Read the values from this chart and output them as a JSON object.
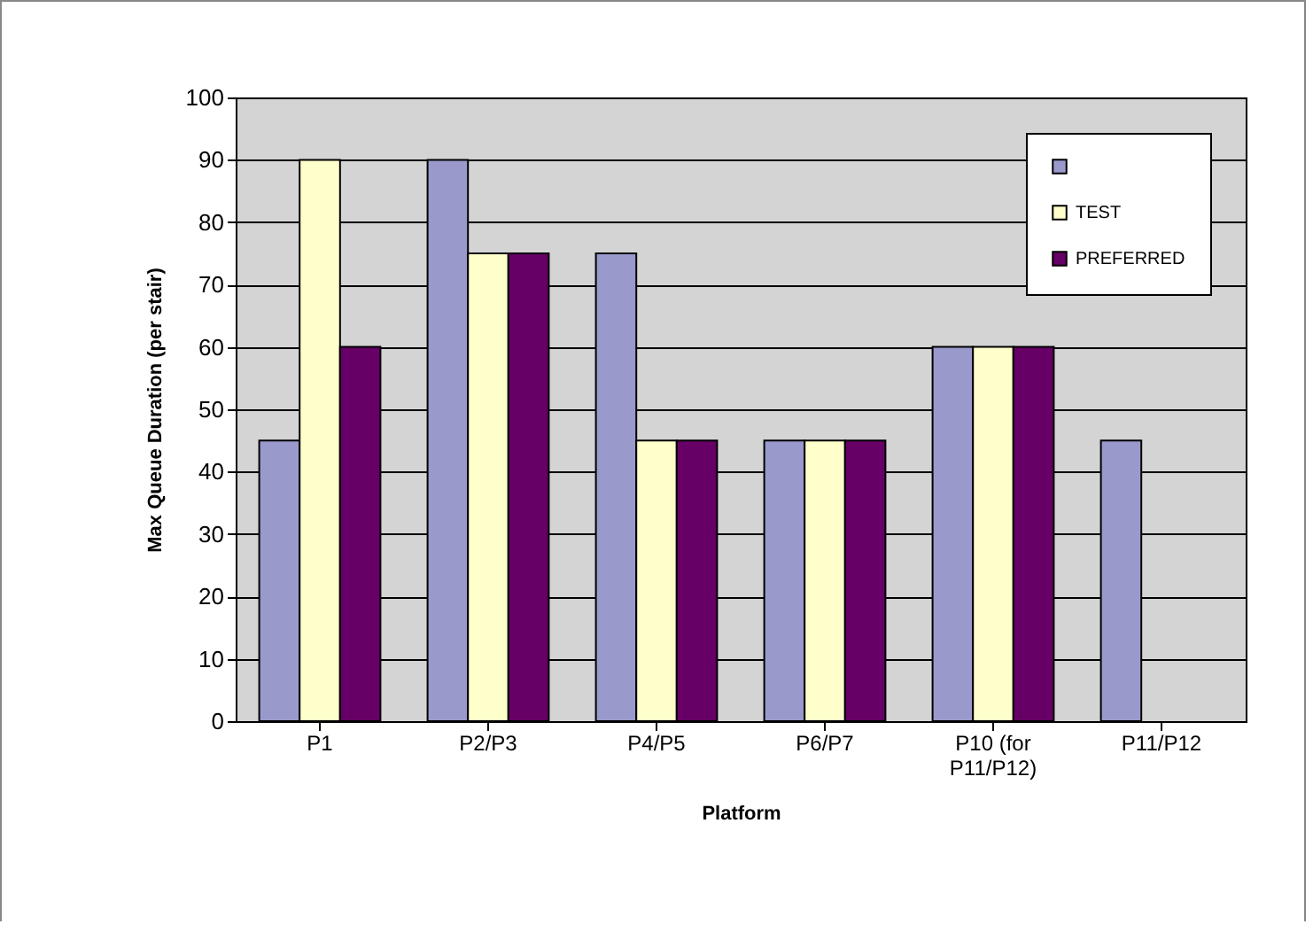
{
  "chart_data": {
    "type": "bar",
    "xlabel": "Platform",
    "ylabel": "Max Queue Duration (per stair)",
    "categories": [
      "P1",
      "P2/P3",
      "P4/P5",
      "P6/P7",
      "P10 (for P11/P12)",
      "P11/P12"
    ],
    "series": [
      {
        "color": "#9999cc",
        "values": [
          45,
          90,
          75,
          45,
          60,
          45
        ]
      },
      {
        "name": "TEST",
        "color": "#ffffcc",
        "values": [
          90,
          75,
          45,
          45,
          60,
          null
        ]
      },
      {
        "name": "PREFERRED",
        "color": "#660066",
        "values": [
          60,
          75,
          45,
          45,
          60,
          null
        ]
      }
    ],
    "ylim": [
      0,
      100
    ],
    "yticks": [
      0,
      10,
      20,
      30,
      40,
      50,
      60,
      70,
      80,
      90,
      100
    ],
    "grid": "y",
    "legend": "top right"
  }
}
